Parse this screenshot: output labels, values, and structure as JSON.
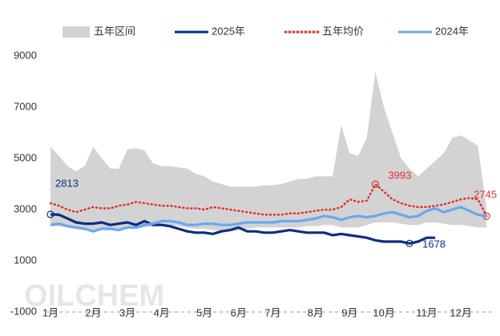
{
  "chart_data": {
    "type": "line",
    "watermark": "OILCHEM",
    "categories": [
      "1月",
      null,
      null,
      null,
      null,
      "2月",
      null,
      null,
      null,
      "3月",
      null,
      null,
      null,
      "4月",
      null,
      null,
      null,
      null,
      "5月",
      null,
      null,
      null,
      "6月",
      null,
      null,
      null,
      "7月",
      null,
      null,
      null,
      null,
      "8月",
      null,
      null,
      null,
      "9月",
      null,
      null,
      null,
      "10月",
      null,
      null,
      null,
      null,
      "11月",
      null,
      null,
      null,
      "12月",
      null,
      null,
      null
    ],
    "ylim": [
      -1000,
      9000
    ],
    "yticks": [
      -1000,
      1000,
      3000,
      5000,
      7000,
      9000
    ],
    "grid": false,
    "legend": "top",
    "series": [
      {
        "name": "五年区间",
        "kind": "range",
        "color": "#d3d3d3",
        "values": [
          5450,
          5100,
          4700,
          4500,
          4700,
          5450,
          5000,
          4600,
          4600,
          5350,
          5400,
          5300,
          4800,
          4700,
          4700,
          4650,
          4600,
          4400,
          4300,
          4100,
          4000,
          3900,
          3900,
          3900,
          3900,
          3950,
          3950,
          4000,
          4100,
          4200,
          4200,
          4300,
          4300,
          4300,
          6300,
          5200,
          5100,
          5800,
          8400,
          7000,
          6000,
          5000,
          4600,
          4300,
          4600,
          4900,
          5200,
          5800,
          5900,
          5700,
          5500,
          3000
        ],
        "low": [
          2350,
          2350,
          2300,
          2250,
          2200,
          2150,
          2200,
          2200,
          2200,
          2250,
          2250,
          2300,
          2350,
          2400,
          2400,
          2350,
          2300,
          2250,
          2250,
          2200,
          2150,
          2150,
          2200,
          2250,
          2300,
          2300,
          2300,
          2300,
          2300,
          2300,
          2350,
          2350,
          2400,
          2400,
          2300,
          2300,
          2300,
          2400,
          2500,
          2500,
          2500,
          2450,
          2400,
          2400,
          2500,
          2500,
          2450,
          2400,
          2400,
          2350,
          2300,
          2300
        ]
      },
      {
        "name": "2025年",
        "kind": "solid",
        "color": "#0d2d80",
        "label_points": [
          0,
          42
        ],
        "values": [
          2813,
          2800,
          2650,
          2500,
          2450,
          2450,
          2500,
          2400,
          2450,
          2500,
          2400,
          2550,
          2400,
          2400,
          2350,
          2250,
          2150,
          2100,
          2100,
          2050,
          2150,
          2200,
          2300,
          2150,
          2150,
          2100,
          2100,
          2150,
          2200,
          2150,
          2100,
          2100,
          2100,
          2000,
          2050,
          2000,
          1950,
          1900,
          1800,
          1750,
          1750,
          1750,
          1678,
          1750,
          1900,
          1900,
          null,
          null,
          null,
          null,
          null,
          null
        ]
      },
      {
        "name": "五年均价",
        "kind": "dotted",
        "color": "#e03030",
        "label_points": [
          38,
          51
        ],
        "values": [
          3250,
          3150,
          3000,
          2900,
          3000,
          3100,
          3050,
          3050,
          3150,
          3200,
          3300,
          3250,
          3200,
          3150,
          3150,
          3100,
          3050,
          3050,
          3000,
          3100,
          3050,
          3000,
          2950,
          2900,
          2850,
          2800,
          2800,
          2800,
          2850,
          2850,
          2900,
          2950,
          3000,
          3000,
          3100,
          3400,
          3300,
          3350,
          3993,
          3700,
          3400,
          3250,
          3150,
          3100,
          3100,
          3150,
          3200,
          3300,
          3400,
          3450,
          3400,
          2745
        ]
      },
      {
        "name": "2024年",
        "kind": "solid",
        "color": "#6aa7f0",
        "values": [
          2400,
          2450,
          2350,
          2300,
          2250,
          2150,
          2250,
          2250,
          2200,
          2300,
          2300,
          2400,
          2450,
          2550,
          2550,
          2500,
          2400,
          2400,
          2450,
          2450,
          2400,
          2400,
          2450,
          2500,
          2500,
          2500,
          2500,
          2550,
          2550,
          2550,
          2600,
          2650,
          2750,
          2700,
          2600,
          2700,
          2750,
          2700,
          2750,
          2850,
          2900,
          2800,
          2700,
          2750,
          2950,
          3050,
          2900,
          3000,
          3100,
          2950,
          2800,
          2750
        ]
      }
    ]
  }
}
